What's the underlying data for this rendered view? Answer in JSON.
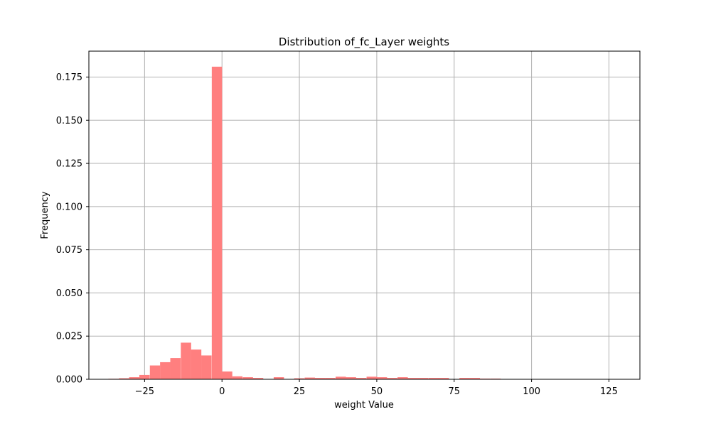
{
  "chart_data": {
    "type": "bar",
    "title": "Distribution of_fc_Layer weights",
    "xlabel": "weight Value",
    "ylabel": "Frequency",
    "xlim": [
      -43,
      135
    ],
    "ylim": [
      0,
      0.19
    ],
    "xticks": [
      -25,
      0,
      25,
      50,
      75,
      100,
      125
    ],
    "xtick_labels": [
      "−25",
      "0",
      "25",
      "50",
      "75",
      "100",
      "125"
    ],
    "yticks": [
      0,
      0.025,
      0.05,
      0.075,
      0.1,
      0.125,
      0.15,
      0.175
    ],
    "ytick_labels": [
      "0.000",
      "0.025",
      "0.050",
      "0.075",
      "0.100",
      "0.125",
      "0.150",
      "0.175"
    ],
    "grid": true,
    "bar_color": "#ff7f7f",
    "bin_width": 3.33,
    "bins": [
      {
        "x0": -36.7,
        "value": 0.0003
      },
      {
        "x0": -33.3,
        "value": 0.0006
      },
      {
        "x0": -30.0,
        "value": 0.0012
      },
      {
        "x0": -26.7,
        "value": 0.0025
      },
      {
        "x0": -23.3,
        "value": 0.008
      },
      {
        "x0": -20.0,
        "value": 0.0099
      },
      {
        "x0": -16.7,
        "value": 0.0123
      },
      {
        "x0": -13.3,
        "value": 0.0212
      },
      {
        "x0": -10.0,
        "value": 0.0172
      },
      {
        "x0": -6.7,
        "value": 0.0138
      },
      {
        "x0": -3.3,
        "value": 0.181
      },
      {
        "x0": 0.0,
        "value": 0.0045
      },
      {
        "x0": 3.3,
        "value": 0.0017
      },
      {
        "x0": 6.7,
        "value": 0.0012
      },
      {
        "x0": 10.0,
        "value": 0.0008
      },
      {
        "x0": 13.3,
        "value": 0.0002
      },
      {
        "x0": 16.7,
        "value": 0.0012
      },
      {
        "x0": 20.0,
        "value": 0.0002
      },
      {
        "x0": 23.3,
        "value": 0.0006
      },
      {
        "x0": 26.7,
        "value": 0.001
      },
      {
        "x0": 30.0,
        "value": 0.0008
      },
      {
        "x0": 33.3,
        "value": 0.0008
      },
      {
        "x0": 36.7,
        "value": 0.0015
      },
      {
        "x0": 40.0,
        "value": 0.0012
      },
      {
        "x0": 43.3,
        "value": 0.0008
      },
      {
        "x0": 46.7,
        "value": 0.0015
      },
      {
        "x0": 50.0,
        "value": 0.0012
      },
      {
        "x0": 53.3,
        "value": 0.0008
      },
      {
        "x0": 56.7,
        "value": 0.0012
      },
      {
        "x0": 60.0,
        "value": 0.0008
      },
      {
        "x0": 63.3,
        "value": 0.0008
      },
      {
        "x0": 66.7,
        "value": 0.0008
      },
      {
        "x0": 70.0,
        "value": 0.0008
      },
      {
        "x0": 73.3,
        "value": 0.0002
      },
      {
        "x0": 76.7,
        "value": 0.0008
      },
      {
        "x0": 80.0,
        "value": 0.0008
      },
      {
        "x0": 83.3,
        "value": 0.0004
      },
      {
        "x0": 86.7,
        "value": 0.0004
      },
      {
        "x0": 90.0,
        "value": 0.0001
      },
      {
        "x0": 93.3,
        "value": 0.0
      },
      {
        "x0": 96.7,
        "value": 0.0
      },
      {
        "x0": 100.0,
        "value": 0.0
      },
      {
        "x0": 103.3,
        "value": 0.0
      },
      {
        "x0": 106.7,
        "value": 0.0
      },
      {
        "x0": 110.0,
        "value": 0.0
      },
      {
        "x0": 113.3,
        "value": 0.0
      },
      {
        "x0": 116.7,
        "value": 0.0
      },
      {
        "x0": 120.0,
        "value": 0.0
      },
      {
        "x0": 123.3,
        "value": 0.0
      },
      {
        "x0": 126.7,
        "value": 0.0
      }
    ]
  }
}
